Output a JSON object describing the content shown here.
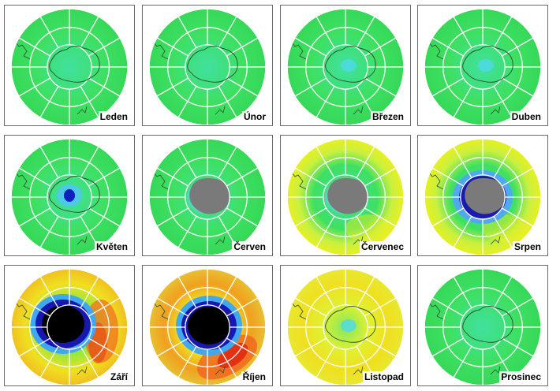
{
  "months": [
    {
      "label": "Leden",
      "hole": "none",
      "anomaly": "none"
    },
    {
      "label": "Únor",
      "hole": "none",
      "anomaly": "none"
    },
    {
      "label": "Březen",
      "hole": "faint",
      "anomaly": "none"
    },
    {
      "label": "Duben",
      "hole": "faint",
      "anomaly": "none"
    },
    {
      "label": "Květen",
      "hole": "small",
      "anomaly": "none"
    },
    {
      "label": "Červen",
      "hole": "no-data",
      "anomaly": "none"
    },
    {
      "label": "Červenec",
      "hole": "no-data",
      "anomaly": "yellow-ring"
    },
    {
      "label": "Srpen",
      "hole": "blue-ring",
      "anomaly": "yellow-ring"
    },
    {
      "label": "Září",
      "hole": "black",
      "anomaly": "orange-crescent"
    },
    {
      "label": "Říjen",
      "hole": "black",
      "anomaly": "red-crescent"
    },
    {
      "label": "Listopad",
      "hole": "faint",
      "anomaly": "yellow-wide"
    },
    {
      "label": "Prosinec",
      "hole": "none",
      "anomaly": "none"
    }
  ],
  "colors": {
    "background": "#38e060",
    "ring_low": "#1a1aa0",
    "hole": "#000000",
    "no_data": "#7a7a7a",
    "high": "#ff3000",
    "mid": "#f0f000"
  }
}
